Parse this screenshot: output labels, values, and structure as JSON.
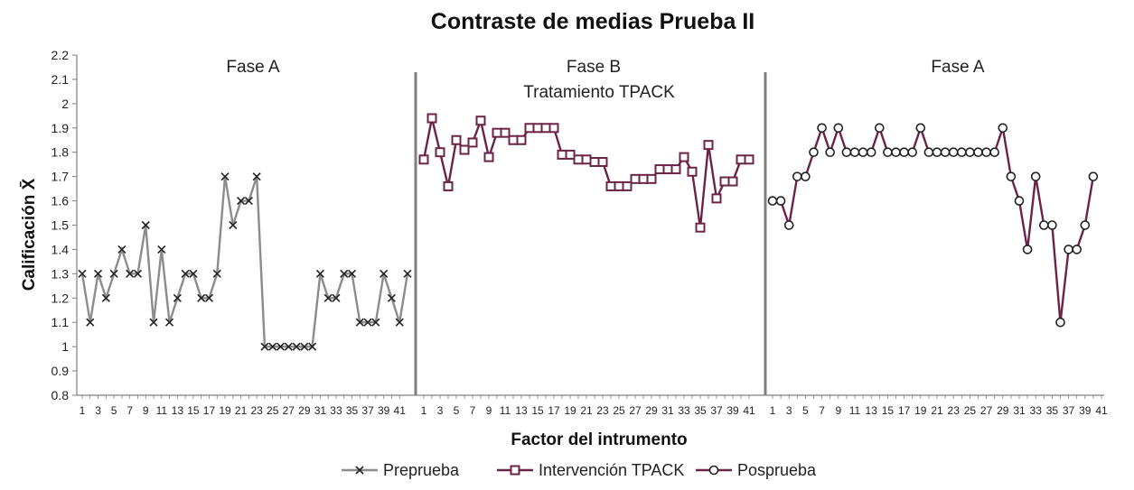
{
  "chart_data": {
    "type": "line",
    "title": "Contraste de medias Prueba II",
    "xlabel": "Factor del intrumento",
    "ylabel": "Calificación X̄",
    "ylim": [
      0.8,
      2.2
    ],
    "yticks": [
      "0.8",
      "0.9",
      "1",
      "1.1",
      "1.2",
      "1.3",
      "1.4",
      "1.5",
      "1.6",
      "1.7",
      "1.8",
      "1.9",
      "2",
      "2.1",
      "2.2"
    ],
    "xticks": [
      "1",
      "3",
      "5",
      "7",
      "9",
      "11",
      "13",
      "15",
      "17",
      "19",
      "21",
      "23",
      "25",
      "27",
      "29",
      "31",
      "33",
      "35",
      "37",
      "39",
      "41"
    ],
    "grid": false,
    "legend_position": "bottom",
    "panels": [
      {
        "phase_label": "Fase A",
        "subtitle": "",
        "series": [
          {
            "name": "Preprueba",
            "color": "#8c8c8c",
            "marker": "x",
            "values": [
              1.3,
              1.1,
              1.3,
              1.2,
              1.3,
              1.4,
              1.3,
              1.3,
              1.5,
              1.1,
              1.4,
              1.1,
              1.2,
              1.3,
              1.3,
              1.2,
              1.2,
              1.3,
              1.7,
              1.5,
              1.6,
              1.6,
              1.7,
              1.0,
              1.0,
              1.0,
              1.0,
              1.0,
              1.0,
              1.0,
              1.3,
              1.2,
              1.2,
              1.3,
              1.3,
              1.1,
              1.1,
              1.1,
              1.3,
              1.2,
              1.1,
              1.3
            ]
          }
        ]
      },
      {
        "phase_label": "Fase B",
        "subtitle": "Tratamiento TPACK",
        "series": [
          {
            "name": "Intervención TPACK",
            "color": "#6b2346",
            "marker": "square",
            "values": [
              1.77,
              1.94,
              1.8,
              1.66,
              1.85,
              1.81,
              1.84,
              1.93,
              1.78,
              1.88,
              1.88,
              1.85,
              1.85,
              1.9,
              1.9,
              1.9,
              1.9,
              1.79,
              1.79,
              1.77,
              1.77,
              1.76,
              1.76,
              1.66,
              1.66,
              1.66,
              1.69,
              1.69,
              1.69,
              1.73,
              1.73,
              1.73,
              1.78,
              1.72,
              1.49,
              1.83,
              1.61,
              1.68,
              1.68,
              1.77,
              1.77
            ]
          }
        ]
      },
      {
        "phase_label": "Fase A",
        "subtitle": "",
        "series": [
          {
            "name": "Posprueba",
            "color": "#6b2346",
            "marker": "circle",
            "values": [
              1.6,
              1.6,
              1.5,
              1.7,
              1.7,
              1.8,
              1.9,
              1.8,
              1.9,
              1.8,
              1.8,
              1.8,
              1.8,
              1.9,
              1.8,
              1.8,
              1.8,
              1.8,
              1.9,
              1.8,
              1.8,
              1.8,
              1.8,
              1.8,
              1.8,
              1.8,
              1.8,
              1.8,
              1.9,
              1.7,
              1.6,
              1.4,
              1.7,
              1.5,
              1.5,
              1.1,
              1.4,
              1.4,
              1.5,
              1.7
            ]
          }
        ]
      }
    ],
    "legend": [
      {
        "label": "Preprueba",
        "color": "#8c8c8c",
        "marker": "x"
      },
      {
        "label": "Intervención TPACK",
        "color": "#6b2346",
        "marker": "square"
      },
      {
        "label": "Posprueba",
        "color": "#6b2346",
        "marker": "circle"
      }
    ]
  }
}
